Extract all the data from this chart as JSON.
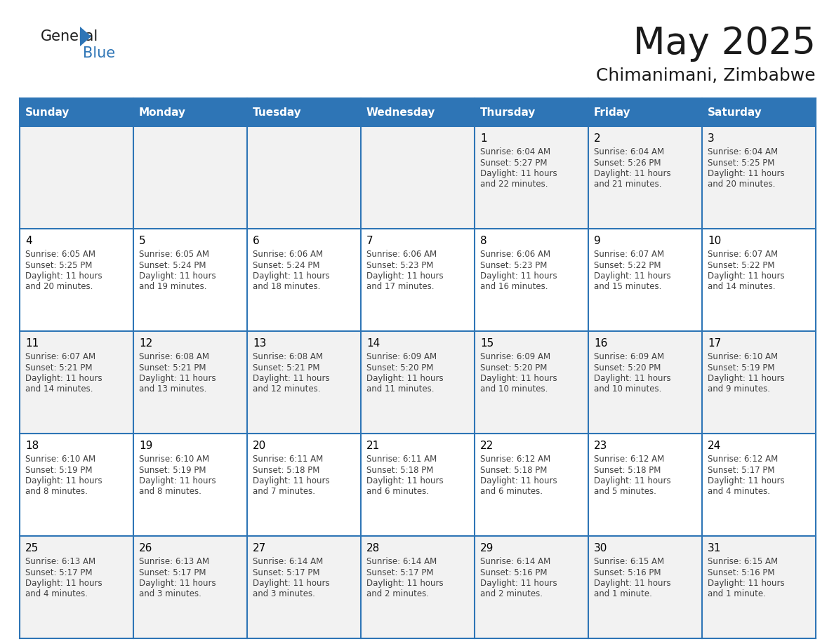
{
  "title": "May 2025",
  "subtitle": "Chimanimani, Zimbabwe",
  "days_of_week": [
    "Sunday",
    "Monday",
    "Tuesday",
    "Wednesday",
    "Thursday",
    "Friday",
    "Saturday"
  ],
  "header_bg": "#2E75B6",
  "header_text_color": "#FFFFFF",
  "row_bg_even": "#F2F2F2",
  "row_bg_odd": "#FFFFFF",
  "cell_border_color": "#2E75B6",
  "day_number_color": "#000000",
  "cell_text_color": "#404040",
  "calendar_data": [
    [
      {
        "day": "",
        "sunrise": "",
        "sunset": "",
        "daylight": ""
      },
      {
        "day": "",
        "sunrise": "",
        "sunset": "",
        "daylight": ""
      },
      {
        "day": "",
        "sunrise": "",
        "sunset": "",
        "daylight": ""
      },
      {
        "day": "",
        "sunrise": "",
        "sunset": "",
        "daylight": ""
      },
      {
        "day": "1",
        "sunrise": "6:04 AM",
        "sunset": "5:27 PM",
        "daylight": "11 hours\nand 22 minutes."
      },
      {
        "day": "2",
        "sunrise": "6:04 AM",
        "sunset": "5:26 PM",
        "daylight": "11 hours\nand 21 minutes."
      },
      {
        "day": "3",
        "sunrise": "6:04 AM",
        "sunset": "5:25 PM",
        "daylight": "11 hours\nand 20 minutes."
      }
    ],
    [
      {
        "day": "4",
        "sunrise": "6:05 AM",
        "sunset": "5:25 PM",
        "daylight": "11 hours\nand 20 minutes."
      },
      {
        "day": "5",
        "sunrise": "6:05 AM",
        "sunset": "5:24 PM",
        "daylight": "11 hours\nand 19 minutes."
      },
      {
        "day": "6",
        "sunrise": "6:06 AM",
        "sunset": "5:24 PM",
        "daylight": "11 hours\nand 18 minutes."
      },
      {
        "day": "7",
        "sunrise": "6:06 AM",
        "sunset": "5:23 PM",
        "daylight": "11 hours\nand 17 minutes."
      },
      {
        "day": "8",
        "sunrise": "6:06 AM",
        "sunset": "5:23 PM",
        "daylight": "11 hours\nand 16 minutes."
      },
      {
        "day": "9",
        "sunrise": "6:07 AM",
        "sunset": "5:22 PM",
        "daylight": "11 hours\nand 15 minutes."
      },
      {
        "day": "10",
        "sunrise": "6:07 AM",
        "sunset": "5:22 PM",
        "daylight": "11 hours\nand 14 minutes."
      }
    ],
    [
      {
        "day": "11",
        "sunrise": "6:07 AM",
        "sunset": "5:21 PM",
        "daylight": "11 hours\nand 14 minutes."
      },
      {
        "day": "12",
        "sunrise": "6:08 AM",
        "sunset": "5:21 PM",
        "daylight": "11 hours\nand 13 minutes."
      },
      {
        "day": "13",
        "sunrise": "6:08 AM",
        "sunset": "5:21 PM",
        "daylight": "11 hours\nand 12 minutes."
      },
      {
        "day": "14",
        "sunrise": "6:09 AM",
        "sunset": "5:20 PM",
        "daylight": "11 hours\nand 11 minutes."
      },
      {
        "day": "15",
        "sunrise": "6:09 AM",
        "sunset": "5:20 PM",
        "daylight": "11 hours\nand 10 minutes."
      },
      {
        "day": "16",
        "sunrise": "6:09 AM",
        "sunset": "5:20 PM",
        "daylight": "11 hours\nand 10 minutes."
      },
      {
        "day": "17",
        "sunrise": "6:10 AM",
        "sunset": "5:19 PM",
        "daylight": "11 hours\nand 9 minutes."
      }
    ],
    [
      {
        "day": "18",
        "sunrise": "6:10 AM",
        "sunset": "5:19 PM",
        "daylight": "11 hours\nand 8 minutes."
      },
      {
        "day": "19",
        "sunrise": "6:10 AM",
        "sunset": "5:19 PM",
        "daylight": "11 hours\nand 8 minutes."
      },
      {
        "day": "20",
        "sunrise": "6:11 AM",
        "sunset": "5:18 PM",
        "daylight": "11 hours\nand 7 minutes."
      },
      {
        "day": "21",
        "sunrise": "6:11 AM",
        "sunset": "5:18 PM",
        "daylight": "11 hours\nand 6 minutes."
      },
      {
        "day": "22",
        "sunrise": "6:12 AM",
        "sunset": "5:18 PM",
        "daylight": "11 hours\nand 6 minutes."
      },
      {
        "day": "23",
        "sunrise": "6:12 AM",
        "sunset": "5:18 PM",
        "daylight": "11 hours\nand 5 minutes."
      },
      {
        "day": "24",
        "sunrise": "6:12 AM",
        "sunset": "5:17 PM",
        "daylight": "11 hours\nand 4 minutes."
      }
    ],
    [
      {
        "day": "25",
        "sunrise": "6:13 AM",
        "sunset": "5:17 PM",
        "daylight": "11 hours\nand 4 minutes."
      },
      {
        "day": "26",
        "sunrise": "6:13 AM",
        "sunset": "5:17 PM",
        "daylight": "11 hours\nand 3 minutes."
      },
      {
        "day": "27",
        "sunrise": "6:14 AM",
        "sunset": "5:17 PM",
        "daylight": "11 hours\nand 3 minutes."
      },
      {
        "day": "28",
        "sunrise": "6:14 AM",
        "sunset": "5:17 PM",
        "daylight": "11 hours\nand 2 minutes."
      },
      {
        "day": "29",
        "sunrise": "6:14 AM",
        "sunset": "5:16 PM",
        "daylight": "11 hours\nand 2 minutes."
      },
      {
        "day": "30",
        "sunrise": "6:15 AM",
        "sunset": "5:16 PM",
        "daylight": "11 hours\nand 1 minute."
      },
      {
        "day": "31",
        "sunrise": "6:15 AM",
        "sunset": "5:16 PM",
        "daylight": "11 hours\nand 1 minute."
      }
    ]
  ]
}
